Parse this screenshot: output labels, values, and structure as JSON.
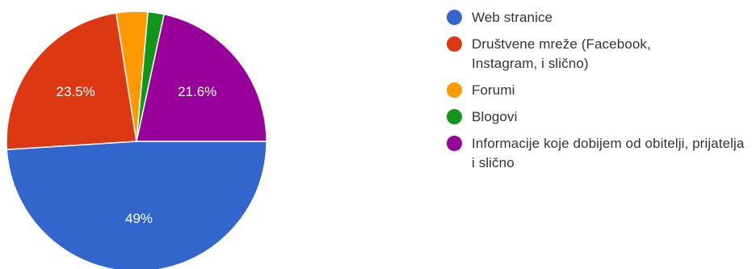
{
  "chart_data": {
    "type": "pie",
    "slices": [
      {
        "label": "Web stranice",
        "value": 49,
        "display": "49%",
        "color": "#3366cc"
      },
      {
        "label": "Društvene mreže (Facebook, Instagram, i slično)",
        "value": 23.5,
        "display": "23.5%",
        "color": "#dc3912"
      },
      {
        "label": "Forumi",
        "value": 3.9,
        "display": "",
        "color": "#ff9900"
      },
      {
        "label": "Blogovi",
        "value": 2.0,
        "display": "",
        "color": "#109618"
      },
      {
        "label": "Informacije koje dobijem od obitelji, prijatelja i slično",
        "value": 21.6,
        "display": "21.6%",
        "color": "#990099"
      }
    ],
    "legend_position": "right"
  },
  "legend": {
    "items": [
      {
        "label": "Web stranice",
        "color": "#3366cc"
      },
      {
        "label": "Društvene mreže (Facebook, Instagram, i slično)",
        "color": "#dc3912"
      },
      {
        "label": "Forumi",
        "color": "#ff9900"
      },
      {
        "label": "Blogovi",
        "color": "#109618"
      },
      {
        "label": "Informacije koje dobijem od obitelji, prijatelja i slično",
        "color": "#990099"
      }
    ]
  }
}
